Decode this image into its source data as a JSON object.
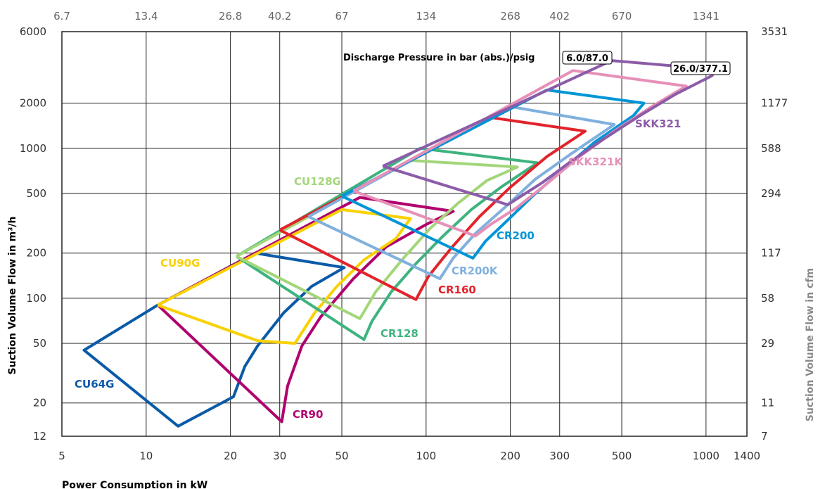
{
  "chart_data": {
    "type": "line",
    "title": "",
    "xlabel": "Power Consumption in kW",
    "ylabel": "Suction Volume Flow in m³/h",
    "ylabel_right": "Suction Volume Flow in cfm",
    "x_scale": "log",
    "y_scale": "log",
    "xlim": [
      5,
      1400
    ],
    "ylim": [
      12,
      6000
    ],
    "grid": true,
    "x_ticks": [
      "5",
      "10",
      "20",
      "30",
      "50",
      "100",
      "200",
      "300",
      "500",
      "1000",
      "1400"
    ],
    "y_ticks": [
      "6000",
      "2000",
      "1000",
      "500",
      "200",
      "100",
      "50",
      "20",
      "12"
    ],
    "top_ticks": [
      "6.7",
      "13.4",
      "26.8",
      "40.2",
      "67",
      "134",
      "268",
      "402",
      "670",
      "1341"
    ],
    "right_ticks": [
      "3531",
      "1177",
      "588",
      "294",
      "117",
      "58",
      "29",
      "11",
      "7"
    ],
    "annotation": {
      "text": "Discharge Pressure in bar (abs.)/psig",
      "low_pressure": "6.0/87.0",
      "high_pressure": "26.0/377.1"
    },
    "series": [
      {
        "name": "CU64G",
        "color": "#0a5aa8",
        "points": [
          [
            11,
            90
          ],
          [
            6,
            45
          ],
          [
            13,
            14
          ],
          [
            20.5,
            22
          ],
          [
            22.5,
            35
          ],
          [
            25,
            48
          ],
          [
            31,
            80
          ],
          [
            39,
            120
          ],
          [
            51,
            160
          ],
          [
            24.5,
            200
          ],
          [
            11,
            90
          ]
        ]
      },
      {
        "name": "CR90",
        "color": "#b0006e",
        "points": [
          [
            11,
            90
          ],
          [
            30.5,
            15
          ],
          [
            32,
            26
          ],
          [
            36,
            48
          ],
          [
            42,
            75
          ],
          [
            55,
            135
          ],
          [
            72,
            220
          ],
          [
            100,
            310
          ],
          [
            125,
            380
          ],
          [
            58,
            470
          ],
          [
            11,
            90
          ]
        ]
      },
      {
        "name": "CU90G",
        "color": "#f9d100",
        "points": [
          [
            11,
            90
          ],
          [
            25,
            52
          ],
          [
            34,
            50
          ],
          [
            40,
            80
          ],
          [
            48,
            120
          ],
          [
            60,
            180
          ],
          [
            78,
            250
          ],
          [
            88,
            340
          ],
          [
            50,
            390
          ],
          [
            11,
            90
          ]
        ]
      },
      {
        "name": "CR128",
        "color": "#3fb37f",
        "points": [
          [
            21,
            190
          ],
          [
            60,
            53
          ],
          [
            64,
            70
          ],
          [
            75,
            110
          ],
          [
            92,
            170
          ],
          [
            115,
            260
          ],
          [
            145,
            390
          ],
          [
            185,
            550
          ],
          [
            250,
            800
          ],
          [
            95,
            1000
          ],
          [
            21,
            190
          ]
        ]
      },
      {
        "name": "CU128G",
        "color": "#a3d67a",
        "points": [
          [
            21,
            190
          ],
          [
            58,
            73
          ],
          [
            66,
            110
          ],
          [
            83,
            185
          ],
          [
            103,
            290
          ],
          [
            130,
            430
          ],
          [
            165,
            610
          ],
          [
            212,
            750
          ],
          [
            88,
            830
          ],
          [
            21,
            190
          ]
        ]
      },
      {
        "name": "CR160",
        "color": "#e3232b",
        "points": [
          [
            30,
            285
          ],
          [
            92,
            98
          ],
          [
            102,
            140
          ],
          [
            124,
            220
          ],
          [
            155,
            350
          ],
          [
            200,
            550
          ],
          [
            270,
            880
          ],
          [
            370,
            1300
          ],
          [
            172,
            1600
          ],
          [
            30,
            285
          ]
        ]
      },
      {
        "name": "CR200K",
        "color": "#80b0de",
        "points": [
          [
            38,
            350
          ],
          [
            112,
            135
          ],
          [
            125,
            185
          ],
          [
            150,
            270
          ],
          [
            190,
            400
          ],
          [
            245,
            620
          ],
          [
            330,
            920
          ],
          [
            470,
            1440
          ],
          [
            199,
            1900
          ],
          [
            38,
            350
          ]
        ]
      },
      {
        "name": "CR200",
        "color": "#0095d7",
        "points": [
          [
            50,
            480
          ],
          [
            147,
            185
          ],
          [
            163,
            240
          ],
          [
            195,
            330
          ],
          [
            240,
            480
          ],
          [
            310,
            730
          ],
          [
            400,
            1100
          ],
          [
            550,
            1650
          ],
          [
            600,
            2000
          ],
          [
            270,
            2450
          ],
          [
            50,
            480
          ]
        ]
      },
      {
        "name": "SKK321K",
        "color": "#e690b8",
        "points": [
          [
            55,
            520
          ],
          [
            150,
            260
          ],
          [
            170,
            310
          ],
          [
            210,
            400
          ],
          [
            270,
            580
          ],
          [
            350,
            870
          ],
          [
            470,
            1300
          ],
          [
            640,
            1900
          ],
          [
            850,
            2600
          ],
          [
            335,
            3300
          ],
          [
            55,
            520
          ]
        ]
      },
      {
        "name": "SKK321",
        "color": "#8c5ca8",
        "points": [
          [
            70,
            760
          ],
          [
            196,
            420
          ],
          [
            215,
            470
          ],
          [
            260,
            590
          ],
          [
            330,
            820
          ],
          [
            430,
            1150
          ],
          [
            580,
            1650
          ],
          [
            780,
            2300
          ],
          [
            1050,
            3050
          ],
          [
            1090,
            3350
          ],
          [
            460,
            3850
          ],
          [
            70,
            760
          ]
        ]
      }
    ],
    "labels": {
      "CU64G": "CU64G",
      "CR90": "CR90",
      "CU90G": "CU90G",
      "CR128": "CR128",
      "CU128G": "CU128G",
      "CR160": "CR160",
      "CR200K": "CR200K",
      "CR200": "CR200",
      "SKK321K": "SKK321K",
      "SKK321": "SKK321"
    }
  }
}
